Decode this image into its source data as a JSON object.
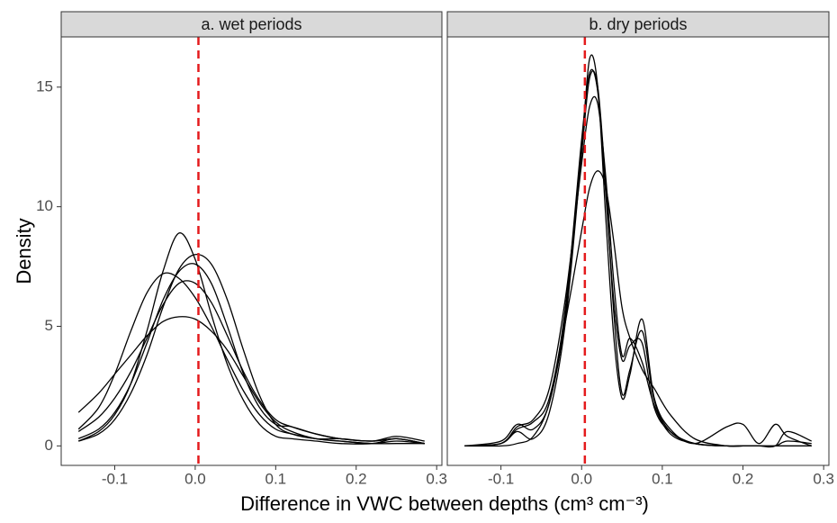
{
  "chart_data": [
    {
      "type": "line",
      "title": "a. wet periods",
      "color": "#000000",
      "xlabel": "Difference in VWC between depths (cm³ cm⁻³)",
      "ylabel": "Density",
      "vline": 0.004,
      "vline_color": "#e41a1c",
      "x": [
        -0.145,
        -0.12,
        -0.1,
        -0.08,
        -0.06,
        -0.04,
        -0.02,
        0,
        0.02,
        0.04,
        0.06,
        0.08,
        0.1,
        0.12,
        0.15,
        0.18,
        0.22,
        0.25,
        0.285
      ],
      "series": [
        {
          "values": [
            0.2,
            0.6,
            1.3,
            2.6,
            4.8,
            7.3,
            8.9,
            7.8,
            5.5,
            3.4,
            1.9,
            0.9,
            0.4,
            0.3,
            0.2,
            0.1,
            0.1,
            0.3,
            0.1
          ]
        },
        {
          "values": [
            1.4,
            2.2,
            3.0,
            3.8,
            4.6,
            5.2,
            5.4,
            5.3,
            4.8,
            4.0,
            2.9,
            1.8,
            1.0,
            0.6,
            0.3,
            0.2,
            0.1,
            0.1,
            0.1
          ]
        },
        {
          "values": [
            0.7,
            1.6,
            3.0,
            4.8,
            6.4,
            7.2,
            7.0,
            6.2,
            5.0,
            3.6,
            2.3,
            1.3,
            0.7,
            0.5,
            0.3,
            0.2,
            0.1,
            0.2,
            0.1
          ]
        },
        {
          "values": [
            0.2,
            0.5,
            1.1,
            2.2,
            3.8,
            5.8,
            7.4,
            8.0,
            7.6,
            6.1,
            4.0,
            2.1,
            0.9,
            0.5,
            0.3,
            0.3,
            0.2,
            0.4,
            0.2
          ]
        },
        {
          "values": [
            0.3,
            0.7,
            1.4,
            2.6,
            4.3,
            6.1,
            7.3,
            7.6,
            6.8,
            5.0,
            3.0,
            1.6,
            0.9,
            0.8,
            0.5,
            0.3,
            0.2,
            0.3,
            0.1
          ]
        },
        {
          "values": [
            0.6,
            1.2,
            2.0,
            3.1,
            4.5,
            5.9,
            6.8,
            6.8,
            6.0,
            4.6,
            3.1,
            1.9,
            1.1,
            0.8,
            0.5,
            0.3,
            0.2,
            0.3,
            0.1
          ]
        }
      ],
      "xlim": [
        -0.1665,
        0.3065
      ],
      "ylim": [
        -0.815,
        17.1
      ],
      "xticks": [
        -0.1,
        {
          "value": 0,
          "label": "0.0"
        },
        0.1,
        0.2,
        0.3
      ],
      "yticks": [
        0,
        5,
        10,
        15
      ]
    },
    {
      "type": "line",
      "title": "b. dry periods",
      "color": "#000000",
      "vline": 0.004,
      "vline_color": "#e41a1c",
      "x": [
        -0.145,
        -0.1,
        -0.08,
        -0.06,
        -0.04,
        -0.02,
        0,
        0.01,
        0.02,
        0.03,
        0.04,
        0.05,
        0.06,
        0.075,
        0.09,
        0.11,
        0.14,
        0.18,
        0.2,
        0.22,
        0.24,
        0.255,
        0.285
      ],
      "series": [
        {
          "values": [
            0,
            0.2,
            0.9,
            0.7,
            1.8,
            5.5,
            12.5,
            16.2,
            15.0,
            9.5,
            4.5,
            2.0,
            3.0,
            5.3,
            2.0,
            0.7,
            0.1,
            0.8,
            0.9,
            0.1,
            0.9,
            0.4,
            0
          ]
        },
        {
          "values": [
            0,
            0.1,
            0.7,
            1.0,
            2.0,
            5.8,
            12.8,
            15.6,
            14.8,
            10.5,
            6.0,
            3.6,
            4.2,
            4.3,
            1.6,
            0.6,
            0.1,
            0,
            0,
            0,
            0,
            0.6,
            0.2
          ]
        },
        {
          "values": [
            0,
            0.1,
            0.8,
            1.1,
            2.4,
            6.2,
            11.8,
            14.2,
            14.3,
            11.2,
            6.8,
            3.8,
            4.5,
            3.5,
            1.7,
            0.5,
            0.1,
            0,
            0,
            0,
            0,
            0.2,
            0.1
          ]
        },
        {
          "values": [
            0,
            0,
            0.1,
            0.4,
            1.8,
            5.2,
            9.0,
            10.8,
            11.5,
            10.8,
            8.5,
            5.8,
            4.5,
            3.2,
            2.4,
            1.3,
            0.3,
            0,
            0,
            0,
            0,
            0,
            0
          ]
        },
        {
          "values": [
            0,
            0.1,
            0.6,
            0.3,
            1.4,
            5.2,
            12.2,
            15.4,
            15.0,
            10.8,
            5.5,
            2.2,
            3.2,
            4.8,
            1.9,
            0.6,
            0.1,
            0,
            0,
            0,
            0,
            0,
            0
          ]
        }
      ],
      "xlim": [
        -0.1665,
        0.3065
      ],
      "ylim": [
        -0.815,
        17.1
      ],
      "xticks": [
        -0.1,
        {
          "value": 0,
          "label": "0.0"
        },
        0.1,
        0.2,
        0.3
      ]
    }
  ]
}
